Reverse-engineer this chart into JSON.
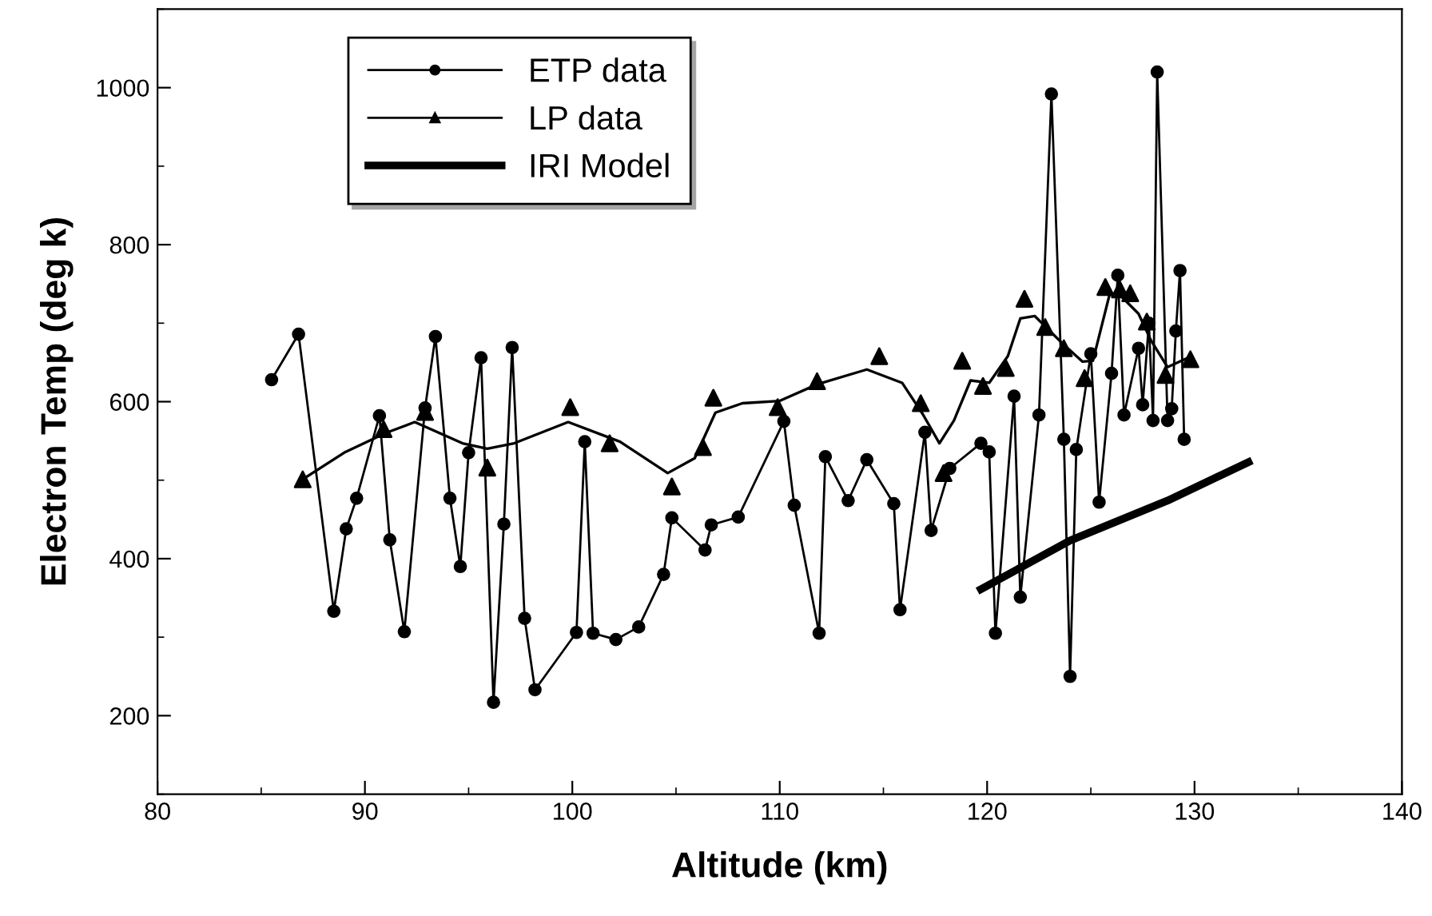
{
  "chart_data": {
    "type": "line",
    "xlabel": "Altitude (km)",
    "ylabel": "Electron Temp (deg k)",
    "xlim": [
      80,
      140
    ],
    "xticks": [
      80,
      90,
      100,
      110,
      120,
      130,
      140
    ],
    "ylim": [
      100,
      1100
    ],
    "yticks": [
      200,
      400,
      600,
      800,
      1000
    ],
    "grid": false,
    "legend": "top left",
    "series": [
      {
        "name": "ETP data",
        "marker": "circle",
        "color": "#000000",
        "x": [
          85.5,
          86.8,
          88.5,
          89.1,
          89.6,
          90.7,
          91.2,
          91.9,
          92.9,
          93.4,
          94.1,
          94.6,
          95.0,
          95.6,
          96.2,
          96.7,
          97.1,
          97.7,
          98.2,
          100.2,
          100.6,
          101.0,
          102.1,
          103.2,
          104.4,
          104.8,
          106.4,
          106.7,
          108.0,
          110.2,
          110.7,
          111.9,
          112.2,
          113.3,
          114.2,
          115.5,
          115.8,
          117.0,
          117.3,
          118.2,
          119.7,
          120.1,
          120.4,
          121.3,
          121.6,
          122.5,
          123.1,
          123.7,
          124.0,
          124.3,
          125.0,
          125.4,
          126.0,
          126.3,
          126.6,
          127.3,
          127.5,
          127.8,
          128.0,
          128.2,
          128.7,
          128.9,
          129.1,
          129.3,
          129.5
        ],
        "values": [
          628,
          686,
          333,
          438,
          477,
          582,
          424,
          307,
          592,
          683,
          477,
          390,
          535,
          656,
          217,
          444,
          669,
          324,
          233,
          306,
          549,
          305,
          297,
          313,
          380,
          452,
          411,
          443,
          453,
          575,
          468,
          305,
          530,
          474,
          526,
          470,
          335,
          561,
          436,
          515,
          547,
          536,
          305,
          607,
          351,
          583,
          992,
          552,
          250,
          539,
          661,
          472,
          636,
          761,
          583,
          668,
          596,
          700,
          576,
          1020,
          576,
          591,
          690,
          767,
          552
        ]
      },
      {
        "name": "LP data",
        "type": "scatter",
        "marker": "triangle",
        "color": "#000000",
        "x": [
          87.0,
          90.9,
          92.9,
          95.9,
          99.9,
          101.8,
          104.8,
          106.3,
          106.8,
          109.9,
          111.8,
          114.8,
          116.8,
          117.9,
          118.8,
          119.8,
          120.9,
          121.8,
          122.8,
          123.7,
          124.7,
          125.7,
          126.4,
          126.9,
          127.7,
          128.6,
          129.8
        ],
        "values": [
          501,
          565,
          587,
          516,
          593,
          547,
          492,
          542,
          605,
          593,
          626,
          658,
          598,
          509,
          652,
          620,
          643,
          731,
          695,
          668,
          630,
          746,
          743,
          738,
          702,
          634,
          654
        ]
      },
      {
        "marker": "none",
        "color": "#000000",
        "x": [
          87.0,
          89.0,
          91.0,
          92.4,
          94.7,
          95.9,
          97.2,
          99.8,
          102.3,
          104.6,
          105.9,
          106.9,
          108.2,
          110.0,
          111.8,
          114.2,
          115.9,
          116.9,
          117.7,
          118.4,
          119.2,
          120.1,
          121.0,
          121.6,
          122.3,
          123.6,
          124.6,
          125.1,
          125.9,
          126.4,
          127.3,
          127.9,
          128.7,
          129.7
        ],
        "values": [
          501,
          535,
          560,
          574,
          547,
          540,
          547,
          574,
          549,
          509,
          528,
          586,
          598,
          601,
          622,
          641,
          624,
          584,
          547,
          576,
          627,
          624,
          658,
          706,
          709,
          675,
          651,
          652,
          736,
          736,
          712,
          678,
          644,
          656
        ]
      },
      {
        "name": "IRI Model",
        "marker": "none",
        "color": "#000000",
        "x": [
          119.7,
          124.0,
          128.7,
          132.6
        ],
        "values": [
          361,
          423,
          474,
          523
        ]
      }
    ]
  }
}
